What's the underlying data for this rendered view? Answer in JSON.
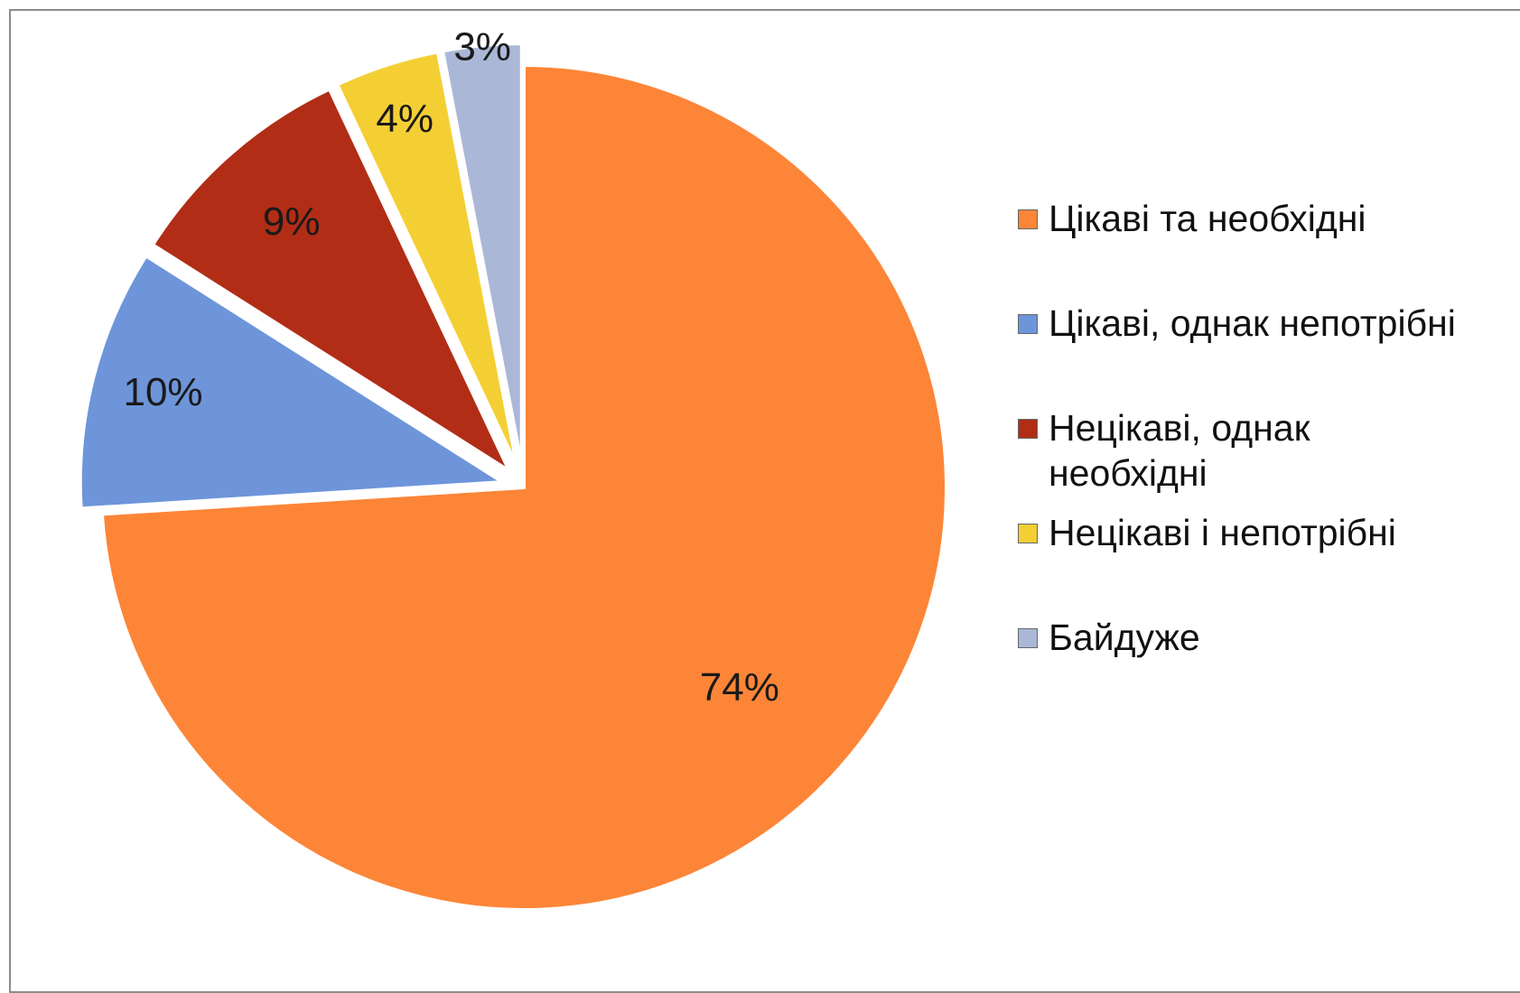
{
  "chart_data": {
    "type": "pie",
    "categories": [
      "Цікаві та необхідні",
      "Цікаві, однак непотрібні",
      "Нецікаві, однак необхідні",
      "Нецікаві і непотрібні",
      "Байдуже"
    ],
    "values": [
      74,
      10,
      9,
      4,
      3
    ],
    "data_labels": [
      "74%",
      "10%",
      "9%",
      "4%",
      "3%"
    ],
    "colors": [
      "#fd8537",
      "#6e95da",
      "#b12d16",
      "#f4cf34",
      "#aab7d7"
    ],
    "legend_position": "right",
    "start_angle": "12 o'clock, clockwise"
  }
}
